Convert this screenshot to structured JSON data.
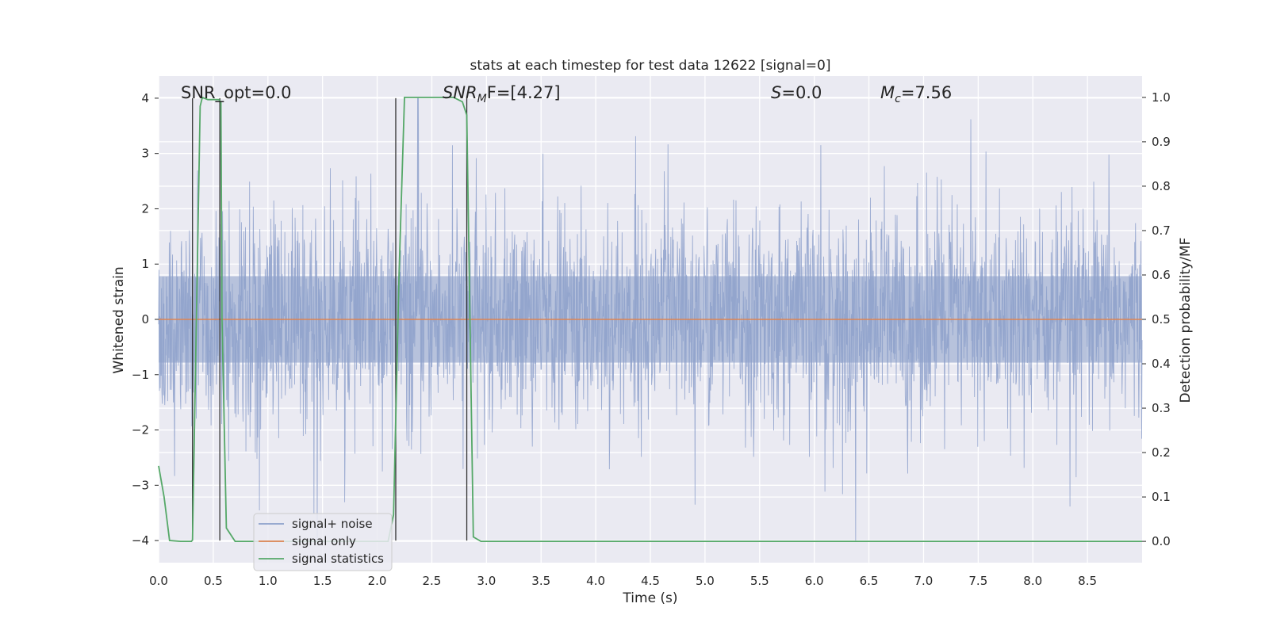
{
  "chart_data": {
    "type": "line",
    "title": "stats at each timestep for test data 12622 [signal=0]",
    "xlabel": "Time (s)",
    "ylabel": "Whitened strain",
    "y2label": "Detection probability/MF",
    "xlim": [
      0,
      9.0
    ],
    "ylim": [
      -4.4,
      4.4
    ],
    "y2lim": [
      -0.048,
      1.048
    ],
    "xticks": [
      "0.0",
      "0.5",
      "1.0",
      "1.5",
      "2.0",
      "2.5",
      "3.0",
      "3.5",
      "4.0",
      "4.5",
      "5.0",
      "5.5",
      "6.0",
      "6.5",
      "7.0",
      "7.5",
      "8.0",
      "8.5"
    ],
    "yticks": [
      "4",
      "3",
      "2",
      "1",
      "0",
      "−1",
      "−2",
      "−3",
      "−4"
    ],
    "y2ticks": [
      "1.0",
      "0.9",
      "0.8",
      "0.7",
      "0.6",
      "0.5",
      "0.4",
      "0.3",
      "0.2",
      "0.1",
      "0.0"
    ],
    "grid": true,
    "legend_position": "lower-left",
    "annotations": {
      "snr_opt": "SNR_opt=0.0",
      "snr_mf_main": "SNR",
      "snr_mf_sub": "M",
      "snr_mf_rest": "F=[4.27]",
      "s_main": "S",
      "s_rest": "=0.0",
      "mc_main": "M",
      "mc_sub": "c",
      "mc_rest": "=7.56"
    },
    "series": [
      {
        "name": "signal+ noise",
        "color": "#8da0cb",
        "description_values": "noise strain oscillating roughly between -4 and 4"
      },
      {
        "name": "signal only",
        "color": "#dd8452",
        "values_constant": 0
      },
      {
        "name": "signal statistics",
        "color": "#55a868",
        "x": [
          0.0,
          0.05,
          0.1,
          0.2,
          0.3,
          0.31,
          0.38,
          0.4,
          0.45,
          0.5,
          0.55,
          0.57,
          0.58,
          0.62,
          0.7,
          0.8,
          2.0,
          2.1,
          2.15,
          2.2,
          2.25,
          2.3,
          2.5,
          2.7,
          2.78,
          2.82,
          2.88,
          2.95,
          3.0,
          9.0
        ],
        "values": [
          0.17,
          0.1,
          0.002,
          0.0,
          0.0,
          0.003,
          0.98,
          1.0,
          0.995,
          0.995,
          0.995,
          0.99,
          0.5,
          0.03,
          0.0,
          0.0,
          0.0,
          0.0,
          0.06,
          0.6,
          1.0,
          1.0,
          1.0,
          1.0,
          0.99,
          0.96,
          0.01,
          0.0,
          0.0,
          0.0
        ]
      }
    ],
    "detection_markers": [
      0.31,
      0.56,
      2.17,
      2.82
    ]
  },
  "colors": {
    "axes_bg": "#eaeaf2",
    "grid": "#ffffff",
    "marker": "#333333"
  }
}
